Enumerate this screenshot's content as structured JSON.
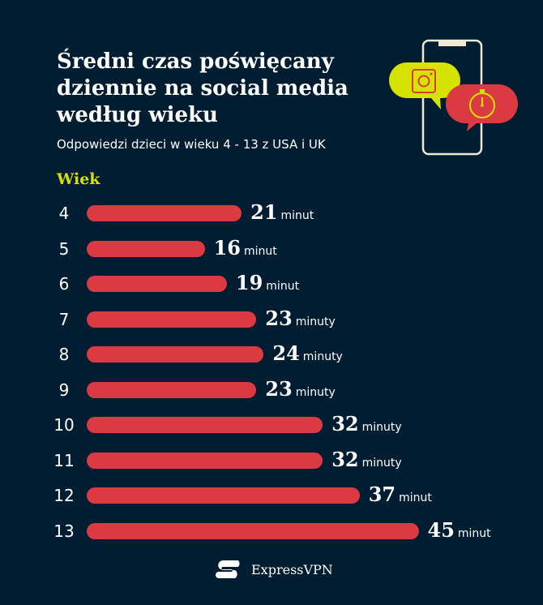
{
  "chart_data": {
    "type": "bar",
    "orientation": "horizontal",
    "title": "Średni czas poświęcany dziennie na social media według wieku",
    "subtitle": "Odpowiedzi dzieci w wieku 4 - 13 z USA i UK",
    "ylabel": "Wiek",
    "xlabel": "",
    "categories": [
      "4",
      "5",
      "6",
      "7",
      "8",
      "9",
      "10",
      "11",
      "12",
      "13"
    ],
    "values": [
      21,
      16,
      19,
      23,
      24,
      23,
      32,
      32,
      37,
      45
    ],
    "units": [
      "minut",
      "minut",
      "minut",
      "minuty",
      "minuty",
      "minuty",
      "minuty",
      "minuty",
      "minut",
      "minut"
    ],
    "grid": false,
    "colors": {
      "bar": "#dc3a42",
      "background": "#011d31",
      "accent": "#d6e200",
      "text": "#ffffff"
    }
  },
  "brand": {
    "name": "ExpressVPN"
  },
  "illustration": {
    "icons": [
      "phone-icon",
      "instagram-icon",
      "stopwatch-icon"
    ]
  }
}
